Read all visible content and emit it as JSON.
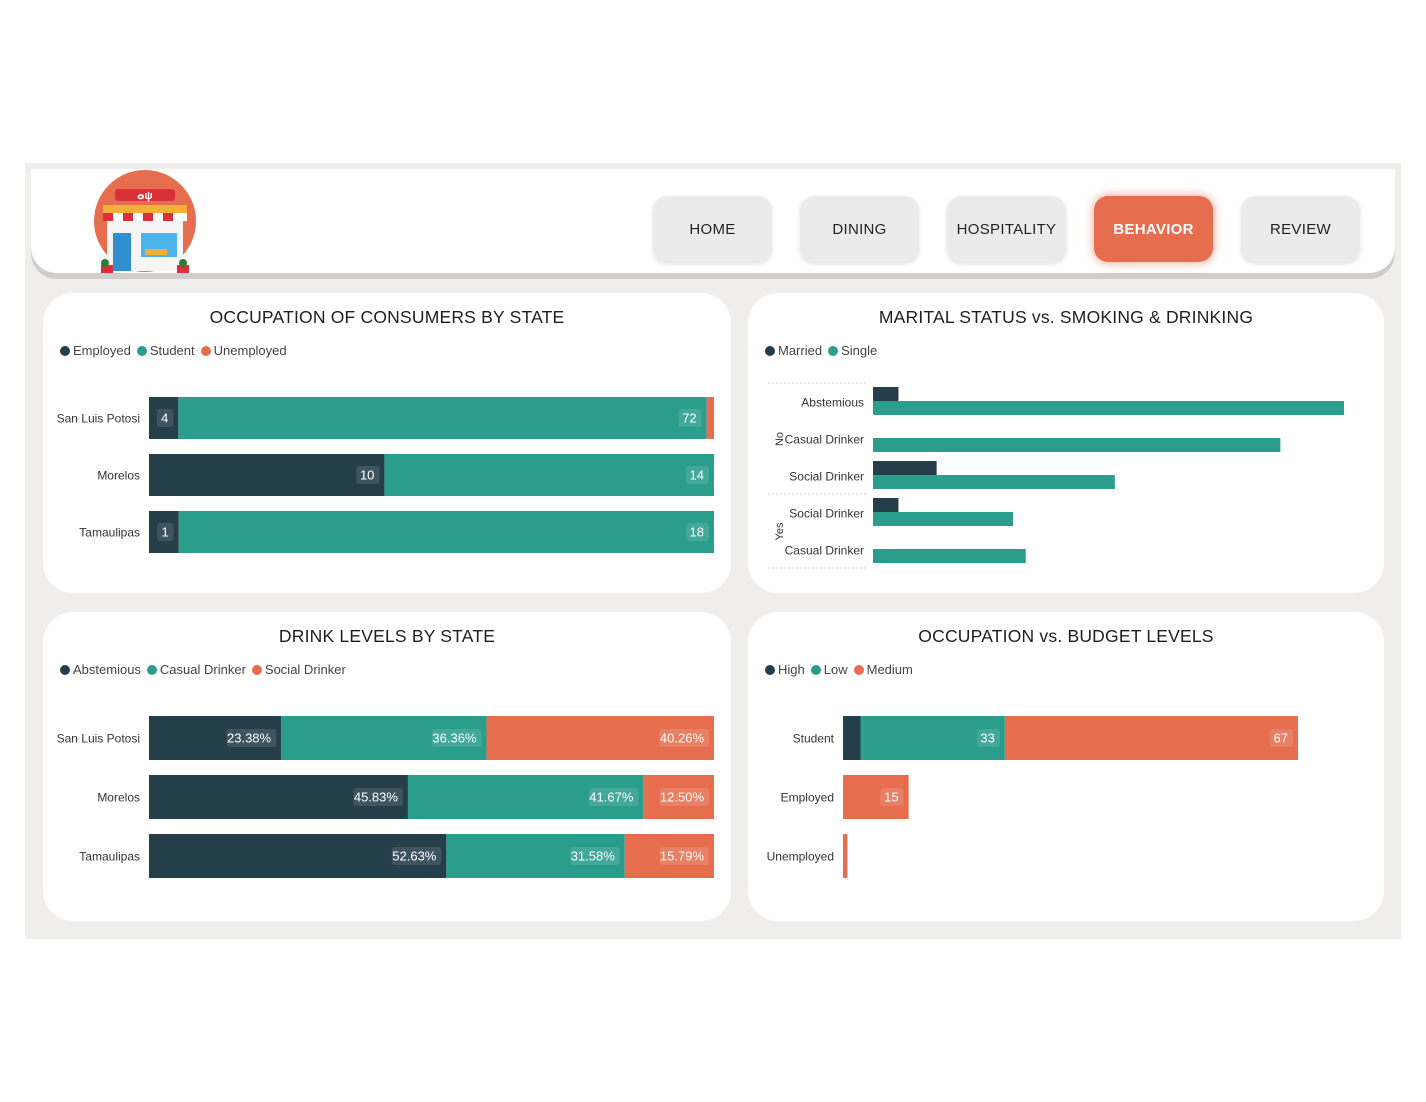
{
  "nav": {
    "items": [
      {
        "label": "HOME",
        "active": false
      },
      {
        "label": "DINING",
        "active": false
      },
      {
        "label": "HOSPITALITY",
        "active": false
      },
      {
        "label": "BEHAVIOR",
        "active": true
      },
      {
        "label": "REVIEW",
        "active": false
      }
    ],
    "logo_icon": "restaurant-storefront-icon"
  },
  "colors": {
    "dark": "#243e4a",
    "teal": "#2a9d8c",
    "orange": "#e66e4f"
  },
  "chart_data": [
    {
      "id": "occupation_by_state",
      "type": "bar",
      "stacking": "percent",
      "orientation": "horizontal",
      "title": "OCCUPATION OF CONSUMERS BY STATE",
      "categories": [
        "San Luis Potosi",
        "Morelos",
        "Tamaulipas"
      ],
      "series": [
        {
          "name": "Employed",
          "values": [
            4,
            10,
            1
          ]
        },
        {
          "name": "Student",
          "values": [
            72,
            14,
            18
          ]
        },
        {
          "name": "Unemployed",
          "values": [
            1,
            0,
            0
          ]
        }
      ],
      "data_labels": [
        [
          "4",
          "72",
          ""
        ],
        [
          "10",
          "14",
          ""
        ],
        [
          "1",
          "18",
          ""
        ]
      ],
      "legend": "top-left"
    },
    {
      "id": "marital_vs_smoking_drinking",
      "type": "bar",
      "orientation": "horizontal",
      "grouping": "clustered",
      "title": "MARITAL STATUS vs. SMOKING & DRINKING",
      "groups": [
        {
          "label": "No",
          "categories": [
            "Abstemious",
            "Casual Drinker",
            "Social Drinker"
          ]
        },
        {
          "label": "Yes",
          "categories": [
            "Social Drinker",
            "Casual Drinker"
          ]
        }
      ],
      "series": [
        {
          "name": "Married",
          "values": [
            4,
            0,
            10,
            4,
            0
          ]
        },
        {
          "name": "Single",
          "values": [
            74,
            64,
            38,
            22,
            24
          ]
        }
      ],
      "legend": "top-left"
    },
    {
      "id": "drink_levels_by_state",
      "type": "bar",
      "stacking": "percent",
      "orientation": "horizontal",
      "title": "DRINK LEVELS BY STATE",
      "categories": [
        "San Luis Potosi",
        "Morelos",
        "Tamaulipas"
      ],
      "series": [
        {
          "name": "Abstemious",
          "values": [
            23.38,
            45.83,
            52.63
          ]
        },
        {
          "name": "Casual Drinker",
          "values": [
            36.36,
            41.67,
            31.58
          ]
        },
        {
          "name": "Social Drinker",
          "values": [
            40.26,
            12.5,
            15.79
          ]
        }
      ],
      "data_labels": [
        [
          "23.38%",
          "36.36%",
          "40.26%"
        ],
        [
          "45.83%",
          "41.67%",
          "12.50%"
        ],
        [
          "52.63%",
          "31.58%",
          "15.79%"
        ]
      ],
      "legend": "top-left"
    },
    {
      "id": "occupation_vs_budget",
      "type": "bar",
      "stacking": "stacked",
      "orientation": "horizontal",
      "title": "OCCUPATION vs. BUDGET LEVELS",
      "categories": [
        "Student",
        "Employed",
        "Unemployed"
      ],
      "series": [
        {
          "name": "High",
          "values": [
            4,
            0,
            0
          ]
        },
        {
          "name": "Low",
          "values": [
            33,
            0,
            0
          ]
        },
        {
          "name": "Medium",
          "values": [
            67,
            15,
            1
          ]
        }
      ],
      "data_labels": [
        [
          "",
          "33",
          "67"
        ],
        [
          "",
          "",
          "15"
        ],
        [
          "",
          "",
          ""
        ]
      ],
      "legend": "top-left"
    }
  ]
}
